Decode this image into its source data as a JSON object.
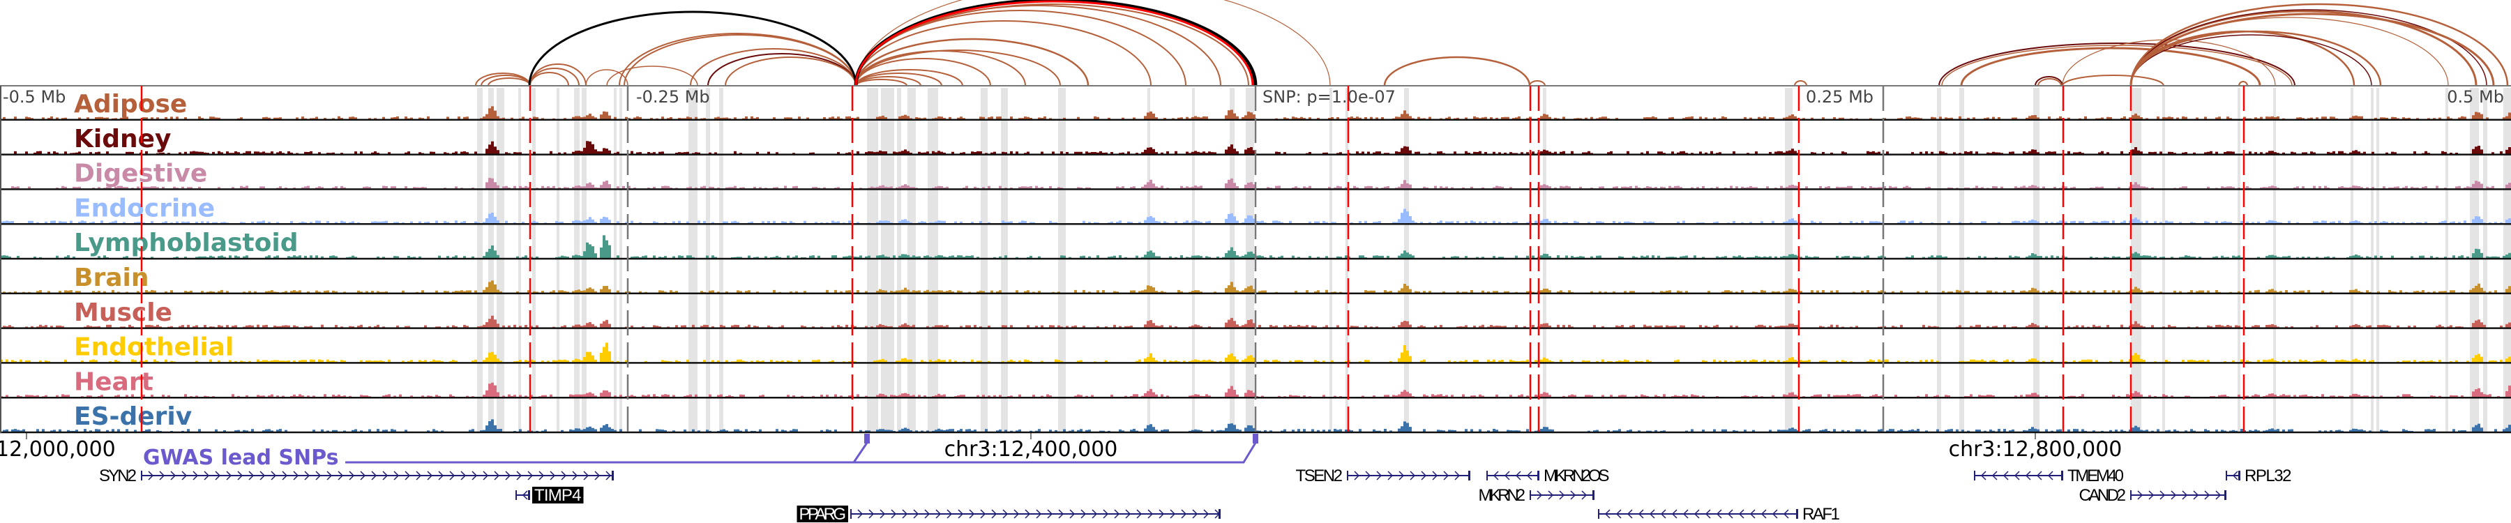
{
  "mb_labels": [
    "-0.5 Mb",
    "-0.25 Mb",
    "SNP: p=1.0e-07",
    "0.25 Mb",
    "0.5 Mb"
  ],
  "tracks": [
    {
      "name": "Adipose",
      "color": "#b5603a"
    },
    {
      "name": "Kidney",
      "color": "#6b0a0a"
    },
    {
      "name": "Digestive",
      "color": "#c98aa8"
    },
    {
      "name": "Endocrine",
      "color": "#99bbff"
    },
    {
      "name": "Lymphoblastoid",
      "color": "#4a9a8a"
    },
    {
      "name": "Brain",
      "color": "#c8902a"
    },
    {
      "name": "Muscle",
      "color": "#c8605a"
    },
    {
      "name": "Endothelial",
      "color": "#ffcc00"
    },
    {
      "name": "Heart",
      "color": "#d86b7e"
    },
    {
      "name": "ES-deriv",
      "color": "#3b72aa"
    }
  ],
  "axis": {
    "labels": [
      "12,000,000",
      "chr3:12,400,000",
      "chr3:12,800,000"
    ]
  },
  "gwas": {
    "label": "GWAS lead SNPs",
    "color": "#6a5acd"
  },
  "genes": [
    {
      "name": "SYN2",
      "strand": "+",
      "highlighted": false
    },
    {
      "name": "TIMP4",
      "strand": "-",
      "highlighted": true
    },
    {
      "name": "PPARG",
      "strand": "+",
      "highlighted": true
    },
    {
      "name": "TSEN2",
      "strand": "+",
      "highlighted": false
    },
    {
      "name": "MKRN2OS",
      "strand": "-",
      "highlighted": false
    },
    {
      "name": "MKRN2",
      "strand": "+",
      "highlighted": false
    },
    {
      "name": "RAF1",
      "strand": "-",
      "highlighted": false
    },
    {
      "name": "TMEM40",
      "strand": "-",
      "highlighted": false
    },
    {
      "name": "CAND2",
      "strand": "+",
      "highlighted": false
    },
    {
      "name": "RPL32",
      "strand": "-",
      "highlighted": false
    }
  ],
  "colors": {
    "snp_line": "#ff0000",
    "highlight_band": "#e4e4e4",
    "gene": "#1f1f7a",
    "arc": "#b5603a",
    "arc_dark": "#6b0a0a"
  }
}
